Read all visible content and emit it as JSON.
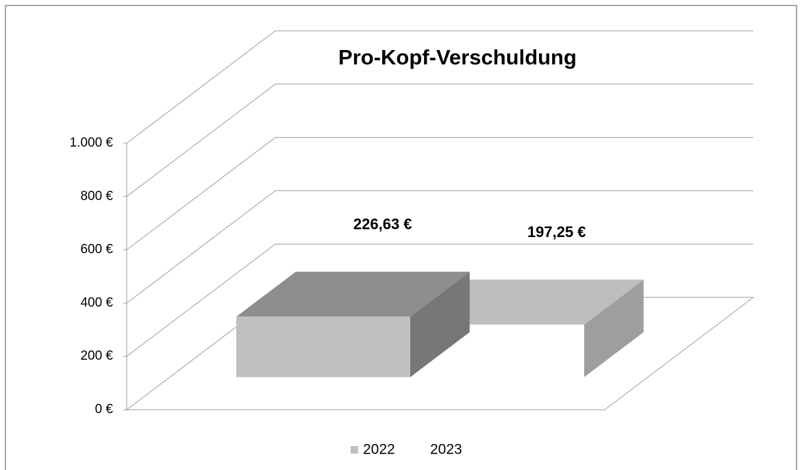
{
  "chart_data": {
    "type": "bar3d",
    "title": "Pro-Kopf-Verschuldung",
    "series": [
      {
        "name": "2022",
        "color": "#c0c0c0",
        "values": [
          226.63
        ],
        "value_labels": [
          "226,63 €"
        ]
      },
      {
        "name": "2023",
        "color": "#ffffff",
        "values": [
          197.25
        ],
        "value_labels": [
          "197,25 €"
        ]
      }
    ],
    "ylim": [
      0,
      1000
    ],
    "yticks": [
      {
        "value": 0,
        "label": "0 €"
      },
      {
        "value": 200,
        "label": "200 €"
      },
      {
        "value": 400,
        "label": "400 €"
      },
      {
        "value": 600,
        "label": "600 €"
      },
      {
        "value": 800,
        "label": "800 €"
      },
      {
        "value": 1000,
        "label": "1.000 €"
      }
    ],
    "grid": true,
    "legend": "bottom"
  }
}
